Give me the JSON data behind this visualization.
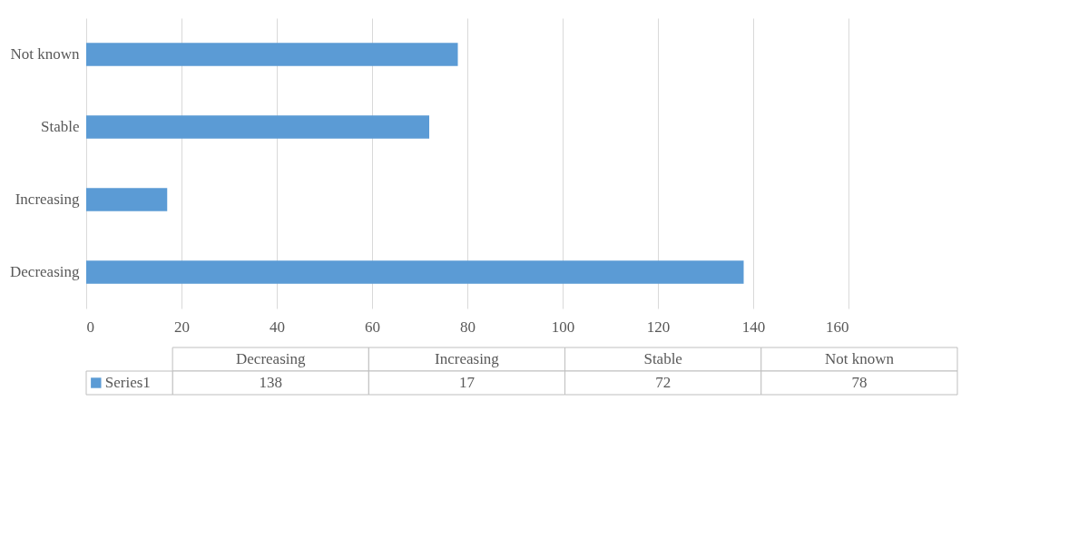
{
  "chart_data": {
    "type": "bar",
    "orientation": "horizontal",
    "categories": [
      "Not known",
      "Stable",
      "Increasing",
      "Decreasing"
    ],
    "series": [
      {
        "name": "Series1",
        "color": "#5b9bd5",
        "values": [
          78,
          72,
          17,
          138
        ]
      }
    ],
    "xlim": [
      0,
      160
    ],
    "xticks": [
      0,
      20,
      40,
      60,
      80,
      100,
      120,
      140,
      160
    ],
    "grid": "x",
    "legend": "bottom",
    "annotations": [
      "138",
      "17",
      "72",
      "78"
    ]
  }
}
